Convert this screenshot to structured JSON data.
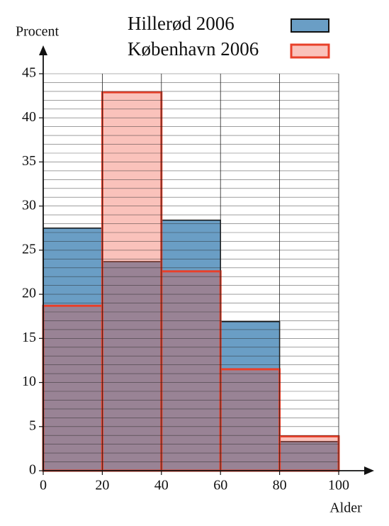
{
  "chart_data": {
    "type": "histogram",
    "bins": [
      0,
      20,
      40,
      60,
      80,
      100
    ],
    "series": [
      {
        "name": "Hillerød 2006",
        "color": "#6a9ec5",
        "edgecolor": "#111111",
        "fill_opacity": 1,
        "values": [
          27.5,
          23.7,
          28.4,
          16.9,
          3.3
        ]
      },
      {
        "name": "København 2006",
        "color": "#f0503c",
        "edgecolor": "#e8402a",
        "fill_opacity": 0.35,
        "values": [
          18.7,
          42.9,
          22.6,
          11.5,
          3.9
        ]
      }
    ],
    "xlabel": "Alder",
    "ylabel": "Procent",
    "xlim": [
      0,
      100
    ],
    "ylim": [
      0,
      45
    ],
    "xticks": [
      0,
      20,
      40,
      60,
      80,
      100
    ],
    "yticks": [
      0,
      5,
      10,
      15,
      20,
      25,
      30,
      35,
      40,
      45
    ],
    "grid": true,
    "minor_grid_step": 1,
    "legend": "upper right"
  }
}
